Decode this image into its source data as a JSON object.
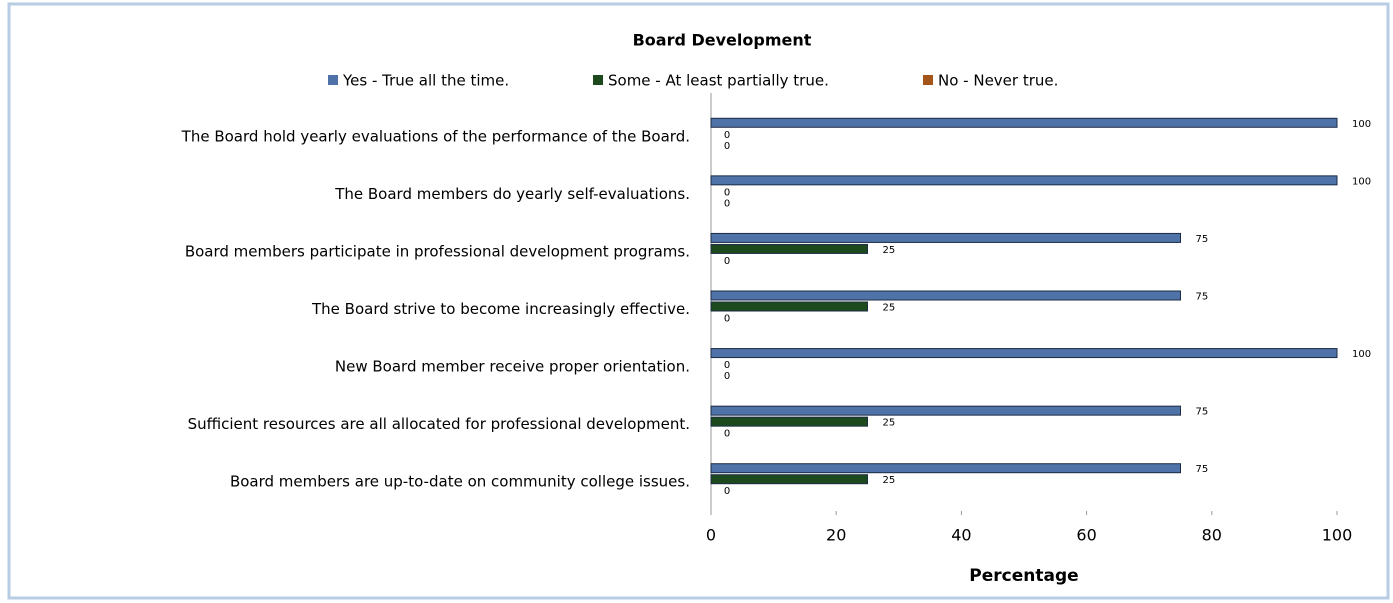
{
  "chart_data": {
    "type": "hbar",
    "title": "Board Development",
    "categories": [
      "The Board hold yearly evaluations of the performance of the Board.",
      "The Board members do yearly self-evaluations.",
      "Board members  participate in professional development programs.",
      "The Board strive to become increasingly effective.",
      "New Board member receive proper orientation.",
      "Sufficient resources are all allocated for professional development.",
      "Board members are up-to-date on community college issues."
    ],
    "series": [
      {
        "name": "Yes - True all the time.",
        "color": "#4f72a8",
        "values": [
          100,
          100,
          75,
          75,
          100,
          75,
          75
        ]
      },
      {
        "name": "Some - At least partially true.",
        "color": "#1d4a1d",
        "values": [
          0,
          0,
          25,
          25,
          0,
          25,
          25
        ]
      },
      {
        "name": "No - Never true.",
        "color": "#a5541a",
        "values": [
          0,
          0,
          0,
          0,
          0,
          0,
          0
        ]
      }
    ],
    "xlim": [
      0,
      100
    ],
    "xticks": [
      0,
      20,
      40,
      60,
      80,
      100
    ],
    "xlabel": "Percentage",
    "legend": "top"
  }
}
